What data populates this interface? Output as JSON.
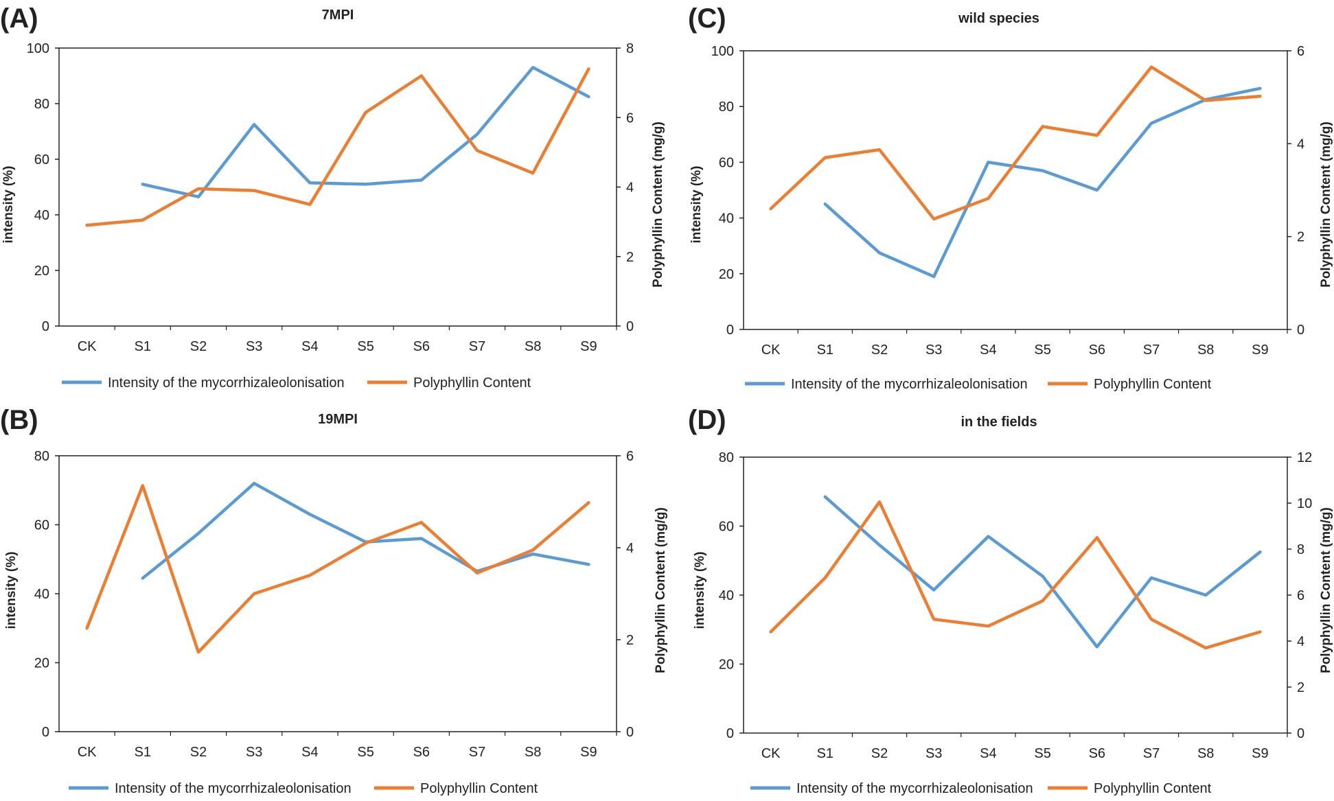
{
  "figure": {
    "colors": {
      "intensity": "#5b9bd5",
      "content": "#ed7d31",
      "axis": "#222222",
      "text": "#222222"
    }
  },
  "chart_data": [
    {
      "type": "line",
      "panel_label": "(A)",
      "title": "7MPI",
      "categories": [
        "CK",
        "S1",
        "S2",
        "S3",
        "S4",
        "S5",
        "S6",
        "S7",
        "S8",
        "S9"
      ],
      "ylabel": "intensity (%)",
      "y2label": "Polyphyllin Content (mg/g)",
      "ylim": [
        0,
        100
      ],
      "yticks": [
        0,
        20,
        40,
        60,
        80,
        100
      ],
      "y2lim": [
        0,
        8
      ],
      "y2ticks": [
        0,
        2,
        4,
        6,
        8
      ],
      "legend_placement": "bottom",
      "grid": false,
      "series": [
        {
          "name": "Intensity of the mycorrhizaleolonisation",
          "axis": "left",
          "values": [
            null,
            51,
            46.5,
            72.5,
            51.5,
            51,
            52.5,
            69,
            93,
            82.5
          ]
        },
        {
          "name": "Polyphyllin Content",
          "axis": "right",
          "values": [
            2.9,
            3.05,
            3.95,
            3.9,
            3.5,
            6.15,
            7.2,
            5.05,
            4.4,
            7.4
          ]
        }
      ]
    },
    {
      "type": "line",
      "panel_label": "(C)",
      "title": "wild species",
      "categories": [
        "CK",
        "S1",
        "S2",
        "S3",
        "S4",
        "S5",
        "S6",
        "S7",
        "S8",
        "S9"
      ],
      "ylabel": "intensity (%)",
      "y2label": "Polyphyllin Content (mg/g)",
      "ylim": [
        0,
        100
      ],
      "yticks": [
        0,
        20,
        40,
        60,
        80,
        100
      ],
      "y2lim": [
        0,
        6
      ],
      "y2ticks": [
        0,
        2,
        4,
        6
      ],
      "legend_placement": "bottom",
      "grid": false,
      "series": [
        {
          "name": "Intensity of the mycorrhizaleolonisation",
          "axis": "left",
          "values": [
            null,
            45,
            27.5,
            19,
            60,
            57,
            50,
            74,
            82.5,
            86.5
          ]
        },
        {
          "name": "Polyphyllin Content",
          "axis": "right",
          "values": [
            2.6,
            3.7,
            3.87,
            2.38,
            2.82,
            4.37,
            4.18,
            5.65,
            4.93,
            5.02
          ]
        }
      ]
    },
    {
      "type": "line",
      "panel_label": "(B)",
      "title": "19MPI",
      "categories": [
        "CK",
        "S1",
        "S2",
        "S3",
        "S4",
        "S5",
        "S6",
        "S7",
        "S8",
        "S9"
      ],
      "ylabel": "intensity (%)",
      "y2label": "Polyphyllin Content (mg/g)",
      "ylim": [
        0,
        80
      ],
      "yticks": [
        0,
        20,
        40,
        60,
        80
      ],
      "y2lim": [
        0,
        6
      ],
      "y2ticks": [
        0,
        2,
        4,
        6
      ],
      "legend_placement": "bottom",
      "grid": false,
      "series": [
        {
          "name": "Intensity of the mycorrhizaleolonisation",
          "axis": "left",
          "values": [
            null,
            44.5,
            57.5,
            72,
            63,
            55,
            56,
            46.5,
            51.5,
            48.5
          ]
        },
        {
          "name": "Polyphyllin Content",
          "axis": "right",
          "values": [
            2.25,
            5.35,
            1.73,
            3,
            3.4,
            4.1,
            4.55,
            3.45,
            3.95,
            4.98
          ]
        }
      ]
    },
    {
      "type": "line",
      "panel_label": "(D)",
      "title": "in the fields",
      "categories": [
        "CK",
        "S1",
        "S2",
        "S3",
        "S4",
        "S5",
        "S6",
        "S7",
        "S8",
        "S9"
      ],
      "ylabel": "intensity (%)",
      "y2label": "Polyphyllin Content (mg/g)",
      "ylim": [
        0,
        80
      ],
      "yticks": [
        0,
        20,
        40,
        60,
        80
      ],
      "y2lim": [
        0,
        12
      ],
      "y2ticks": [
        0,
        2,
        4,
        6,
        8,
        10,
        12
      ],
      "legend_placement": "bottom",
      "grid": false,
      "series": [
        {
          "name": "Intensity of the mycorrhizaleolonisation",
          "axis": "left",
          "values": [
            null,
            68.5,
            54.5,
            41.5,
            57,
            45.5,
            25,
            45,
            40,
            52.5
          ]
        },
        {
          "name": "Polyphyllin Content",
          "axis": "right",
          "values": [
            4.4,
            6.75,
            10.05,
            4.95,
            4.65,
            5.75,
            8.5,
            4.95,
            3.7,
            4.4
          ]
        }
      ]
    }
  ]
}
